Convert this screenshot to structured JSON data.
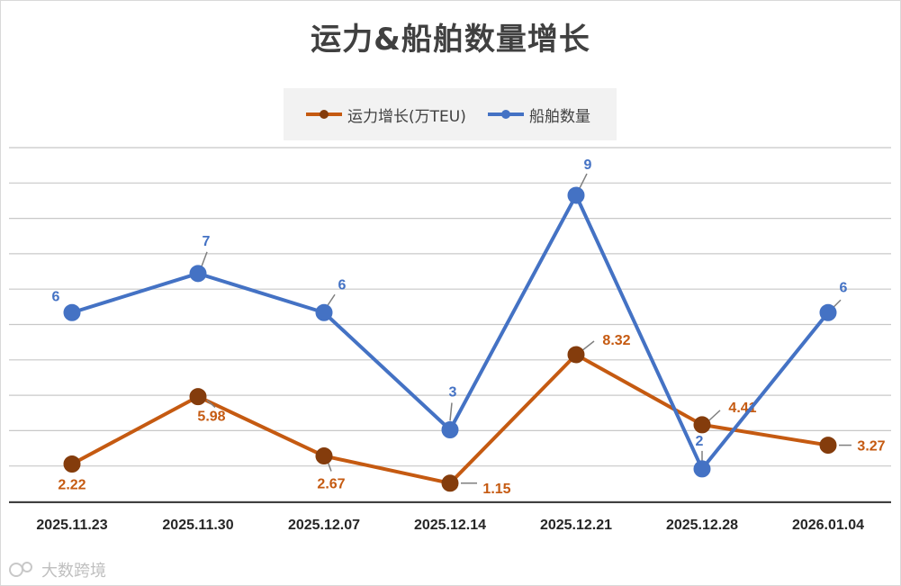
{
  "chart_data": {
    "type": "line",
    "title": "运力&船舶数量增长",
    "categories": [
      "2025.11.23",
      "2025.11.30",
      "2025.12.07",
      "2025.12.14",
      "2025.12.21",
      "2025.12.28",
      "2026.01.04"
    ],
    "series": [
      {
        "name": "运力增长(万TEU)",
        "color": "#c55a11",
        "marker_color": "#843c0c",
        "label_color": "#c55a11",
        "values": [
          2.22,
          5.98,
          2.67,
          1.15,
          8.32,
          4.41,
          3.27
        ]
      },
      {
        "name": "船舶数量",
        "color": "#4472c4",
        "marker_color": "#4472c4",
        "label_color": "#4472c4",
        "values": [
          6,
          7,
          6,
          3,
          9,
          2,
          6
        ]
      }
    ],
    "xlabel": "",
    "ylabel": "",
    "grid": true,
    "legend_position": "top-center"
  },
  "watermark": "大数跨境"
}
